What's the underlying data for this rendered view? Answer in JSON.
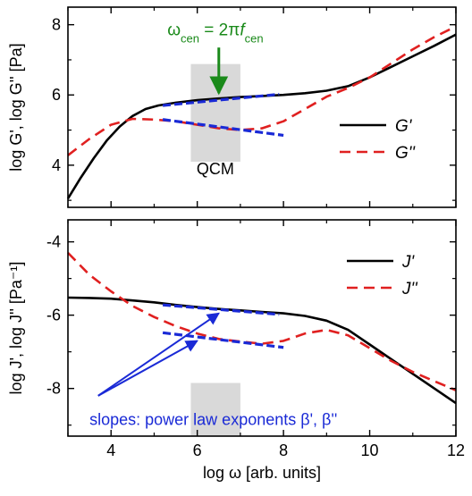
{
  "colors": {
    "solid": "#000000",
    "dashed": "#e02020",
    "slope": "#1a2ad6",
    "arrow_green": "#1a8a1a",
    "band": "#d9d9d9",
    "frame": "#000000"
  },
  "chart_data": [
    {
      "type": "line",
      "panel": "top",
      "ylabel": "log G', log G'' [Pa]",
      "xlim": [
        3,
        12
      ],
      "ylim": [
        2.8,
        8.5
      ],
      "x_ticks": [
        4,
        6,
        8,
        10,
        12
      ],
      "y_ticks": [
        4,
        6,
        8
      ],
      "y_tick_labels": [
        "4",
        "6",
        "8"
      ],
      "legend_position": "right",
      "series": [
        {
          "name": "G'",
          "style": "solid",
          "color": "#000000",
          "x": [
            3.0,
            3.3,
            3.6,
            3.9,
            4.2,
            4.5,
            4.8,
            5.1,
            5.5,
            6.0,
            6.5,
            7.0,
            7.5,
            8.0,
            8.5,
            9.0,
            9.5,
            10.0,
            10.5,
            11.0,
            11.5,
            12.0
          ],
          "y": [
            3.05,
            3.65,
            4.2,
            4.7,
            5.1,
            5.4,
            5.6,
            5.7,
            5.78,
            5.85,
            5.9,
            5.94,
            5.97,
            6.0,
            6.05,
            6.12,
            6.25,
            6.5,
            6.8,
            7.1,
            7.4,
            7.72
          ]
        },
        {
          "name": "G''",
          "style": "dashed",
          "color": "#e02020",
          "x": [
            3.0,
            3.5,
            4.0,
            4.5,
            5.0,
            5.5,
            6.0,
            6.5,
            7.0,
            7.5,
            8.0,
            8.5,
            9.0,
            9.5,
            10.0,
            10.5,
            11.0,
            11.5,
            12.0
          ],
          "y": [
            4.28,
            4.75,
            5.15,
            5.32,
            5.3,
            5.25,
            5.15,
            5.05,
            5.0,
            5.05,
            5.25,
            5.6,
            5.95,
            6.2,
            6.5,
            6.9,
            7.3,
            7.65,
            7.95
          ]
        }
      ],
      "slope_lines": [
        {
          "x": [
            5.2,
            7.9
          ],
          "y": [
            5.7,
            6.02
          ]
        },
        {
          "x": [
            5.2,
            8.0
          ],
          "y": [
            5.3,
            4.85
          ]
        }
      ],
      "band_x": [
        5.85,
        7.0
      ],
      "band_y": [
        4.1,
        6.88
      ],
      "band_label": "QCM",
      "band_label_at": [
        6.42,
        3.9
      ],
      "arrow": {
        "label_prefix": "ω",
        "label_sub": "cen",
        "label_mid": " = 2π",
        "label_f": "f",
        "label_sub2": "cen",
        "x": 6.5,
        "y_from": 7.35,
        "y_to": 6.0,
        "label_at": [
          6.42,
          7.85
        ]
      }
    },
    {
      "type": "line",
      "panel": "bottom",
      "xlabel": "log ω [arb. units]",
      "ylabel": "log J', log J'' [Pa⁻¹]",
      "xlim": [
        3,
        12
      ],
      "ylim": [
        -9.3,
        -3.4
      ],
      "x_ticks": [
        4,
        6,
        8,
        10,
        12
      ],
      "y_ticks": [
        -4,
        -6,
        -8
      ],
      "y_tick_labels": [
        "-4",
        "-6",
        "-8"
      ],
      "legend_position": "top-right",
      "series": [
        {
          "name": "J'",
          "style": "solid",
          "color": "#000000",
          "x": [
            3.0,
            3.5,
            4.0,
            4.5,
            5.0,
            5.5,
            6.0,
            6.5,
            7.0,
            7.5,
            8.0,
            8.5,
            9.0,
            9.5,
            10.0,
            10.5,
            11.0,
            11.5,
            12.0
          ],
          "y": [
            -5.52,
            -5.53,
            -5.55,
            -5.6,
            -5.65,
            -5.72,
            -5.78,
            -5.83,
            -5.87,
            -5.91,
            -5.95,
            -6.02,
            -6.15,
            -6.4,
            -6.8,
            -7.2,
            -7.6,
            -8.0,
            -8.4
          ]
        },
        {
          "name": "J''",
          "style": "dashed",
          "color": "#e02020",
          "x": [
            3.0,
            3.5,
            4.0,
            4.5,
            5.0,
            5.5,
            6.0,
            6.5,
            7.0,
            7.5,
            8.0,
            8.5,
            9.0,
            9.5,
            10.0,
            10.5,
            11.0,
            11.5,
            12.0
          ],
          "y": [
            -4.3,
            -4.9,
            -5.35,
            -5.75,
            -6.05,
            -6.3,
            -6.5,
            -6.65,
            -6.72,
            -6.78,
            -6.7,
            -6.5,
            -6.4,
            -6.55,
            -6.9,
            -7.25,
            -7.55,
            -7.8,
            -8.05
          ]
        }
      ],
      "slope_lines": [
        {
          "x": [
            5.2,
            7.9
          ],
          "y": [
            -5.72,
            -5.98
          ]
        },
        {
          "x": [
            5.2,
            8.0
          ],
          "y": [
            -6.48,
            -6.88
          ]
        }
      ],
      "band_x": [
        5.85,
        7.0
      ],
      "band_y": [
        -9.3,
        -7.85
      ],
      "annotation": {
        "text": "slopes: power law exponents β', β''",
        "at": [
          3.5,
          -8.85
        ],
        "arrow_from": [
          3.7,
          -8.2
        ],
        "arrows_to": [
          [
            6.5,
            -5.95
          ],
          [
            6.0,
            -6.7
          ]
        ]
      }
    }
  ]
}
